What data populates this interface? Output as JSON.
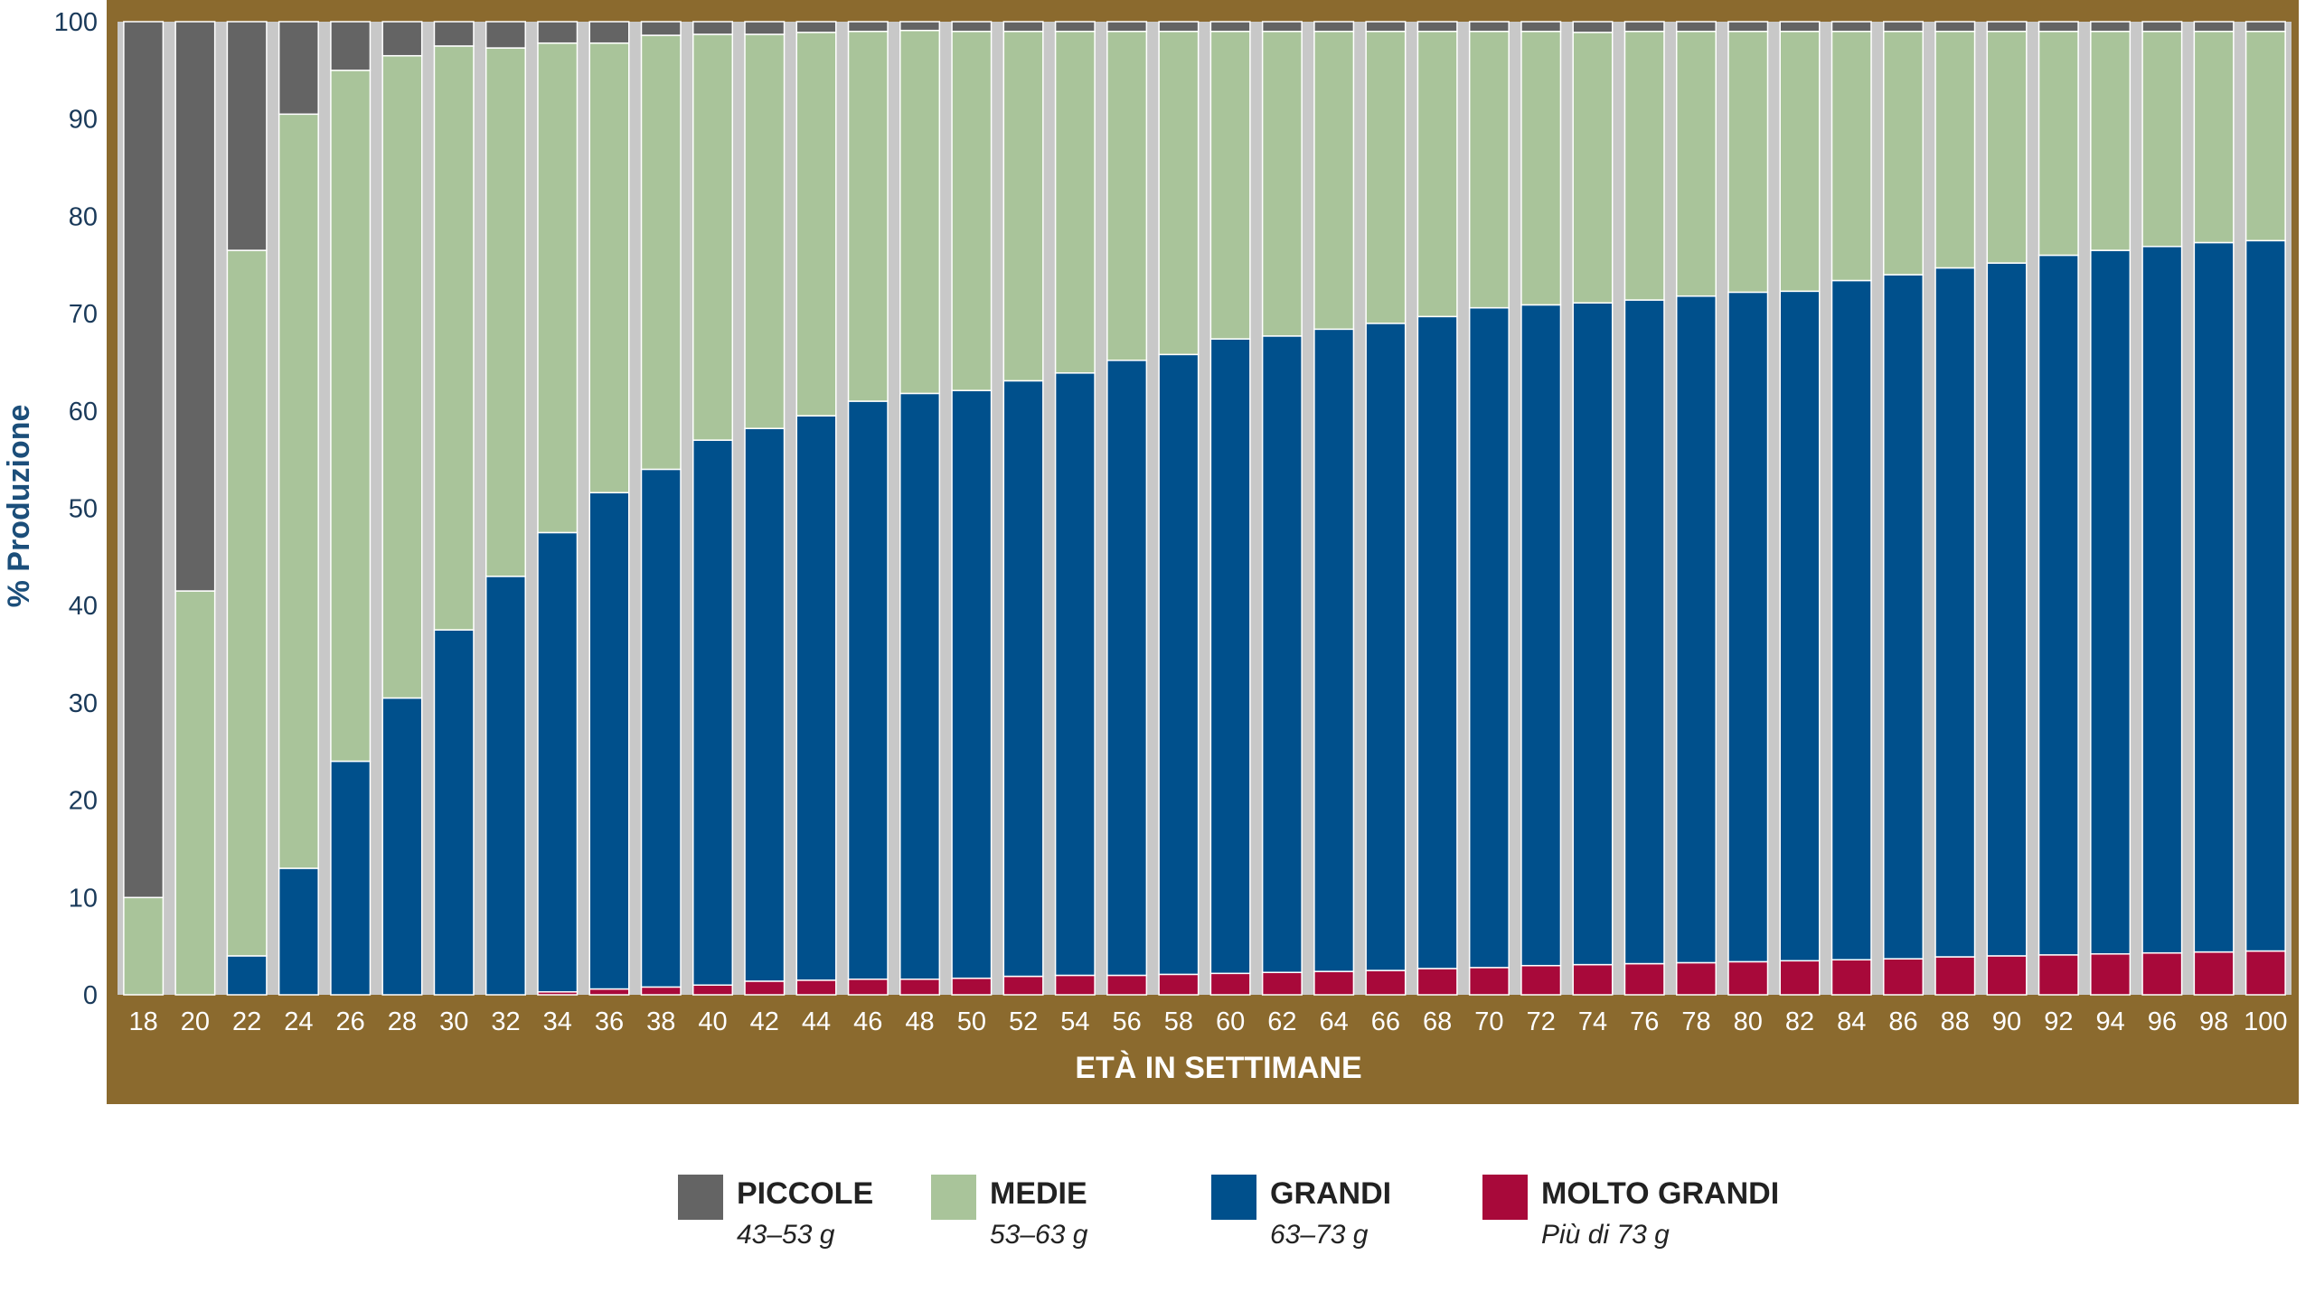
{
  "chart_data": {
    "type": "bar",
    "stacked": true,
    "xlabel": "ETÀ IN SETTIMANE",
    "ylabel": "% Produzione",
    "ylim": [
      0,
      100
    ],
    "yticks": [
      0,
      10,
      20,
      30,
      40,
      50,
      60,
      70,
      80,
      90,
      100
    ],
    "grid": false,
    "legend_position": "bottom",
    "categories": [
      "18",
      "20",
      "22",
      "24",
      "26",
      "28",
      "30",
      "32",
      "34",
      "36",
      "38",
      "40",
      "42",
      "44",
      "46",
      "48",
      "50",
      "52",
      "54",
      "56",
      "58",
      "60",
      "62",
      "64",
      "66",
      "68",
      "70",
      "72",
      "74",
      "76",
      "78",
      "80",
      "82",
      "84",
      "86",
      "88",
      "90",
      "92",
      "94",
      "96",
      "98",
      "100"
    ],
    "series": [
      {
        "name": "MOLTO GRANDI",
        "range": "Più di 73 g",
        "color": "#a8093a",
        "values": [
          0,
          0,
          0,
          0,
          0,
          0,
          0,
          0,
          0.3,
          0.6,
          0.8,
          1,
          1.4,
          1.5,
          1.6,
          1.6,
          1.7,
          1.9,
          2,
          2,
          2.1,
          2.2,
          2.3,
          2.4,
          2.5,
          2.7,
          2.8,
          3,
          3.1,
          3.2,
          3.3,
          3.4,
          3.5,
          3.6,
          3.7,
          3.9,
          4,
          4.1,
          4.2,
          4.3,
          4.4,
          4.5
        ]
      },
      {
        "name": "GRANDI",
        "range": "63–73 g",
        "color": "#00508c",
        "values": [
          0,
          0,
          4,
          13,
          24,
          30.5,
          37.5,
          43,
          47.2,
          51,
          53.2,
          56,
          56.8,
          58,
          59.4,
          60.2,
          60.4,
          61.2,
          61.9,
          63.2,
          63.7,
          65.2,
          65.4,
          66,
          66.5,
          67,
          67.8,
          67.9,
          68,
          68.2,
          68.5,
          68.8,
          68.8,
          69.8,
          70.3,
          70.8,
          71.2,
          71.9,
          72.3,
          72.6,
          72.9,
          73
        ]
      },
      {
        "name": "MEDIE",
        "range": "53–63 g",
        "color": "#a9c49a",
        "values": [
          10,
          41.5,
          72.5,
          77.5,
          71,
          66,
          60,
          54.3,
          50.3,
          46.2,
          44.6,
          41.7,
          40.5,
          39.4,
          38,
          37.3,
          36.9,
          35.9,
          35.1,
          33.8,
          33.2,
          31.6,
          31.3,
          30.6,
          30,
          29.3,
          28.4,
          28.1,
          27.8,
          27.6,
          27.2,
          26.8,
          26.7,
          25.6,
          25,
          24.3,
          23.8,
          23,
          22.5,
          22.1,
          21.7,
          21.5
        ]
      },
      {
        "name": "PICCOLE",
        "range": "43–53 g",
        "color": "#646464",
        "values": [
          90,
          58.5,
          23.5,
          9.5,
          5,
          3.5,
          2.5,
          2.7,
          2.2,
          2.2,
          1.4,
          1.3,
          1.3,
          1.1,
          1,
          0.9,
          1,
          1,
          1,
          1,
          1,
          1,
          1,
          1,
          1,
          1,
          1,
          1,
          1.1,
          1,
          1,
          1,
          1,
          1,
          1,
          1,
          1,
          1,
          1,
          1,
          1,
          1
        ]
      }
    ]
  },
  "legend_order": [
    3,
    2,
    1,
    0
  ]
}
